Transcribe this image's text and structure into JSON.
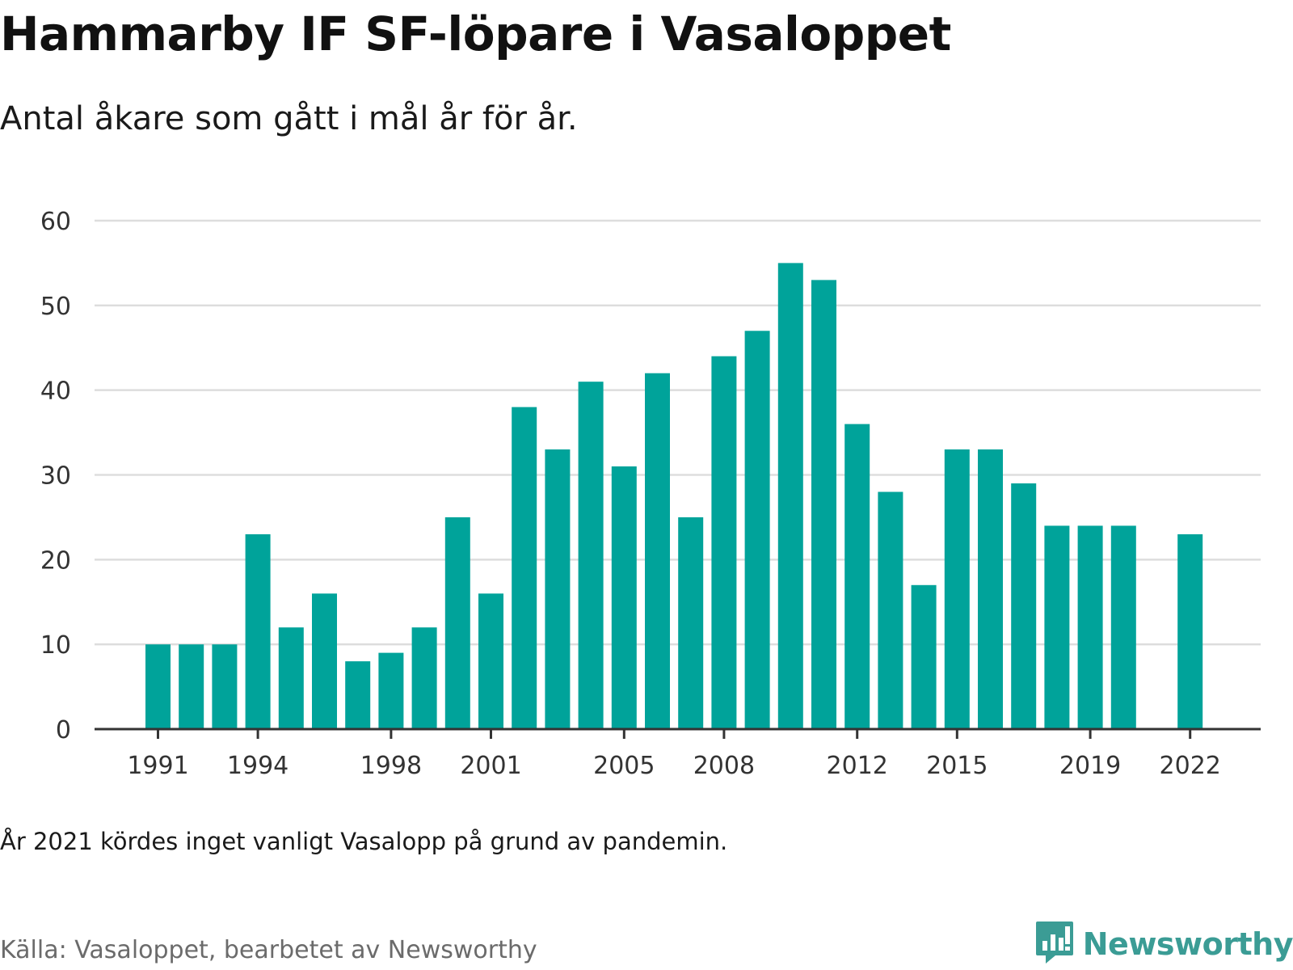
{
  "header": {
    "title": "Hammarby IF SF-löpare i Vasaloppet",
    "subtitle": "Antal åkare som gått i mål år för år."
  },
  "footer": {
    "note": "År 2021 kördes inget vanligt Vasalopp på grund av pandemin.",
    "source": "Källa: Vasaloppet, bearbetet av Newsworthy",
    "brand": "Newsworthy",
    "brand_icon": "newsworthy-logo-icon"
  },
  "colors": {
    "bar": "#00a39a",
    "grid": "#dddddd",
    "axis": "#333333",
    "brand": "#3b9c95"
  },
  "chart_data": {
    "type": "bar",
    "categories": [
      "1991",
      "1992",
      "1993",
      "1994",
      "1995",
      "1996",
      "1997",
      "1998",
      "1999",
      "2000",
      "2001",
      "2002",
      "2003",
      "2004",
      "2005",
      "2006",
      "2007",
      "2008",
      "2009",
      "2010",
      "2011",
      "2012",
      "2013",
      "2014",
      "2015",
      "2016",
      "2017",
      "2018",
      "2019",
      "2020",
      "2021",
      "2022"
    ],
    "values": [
      10,
      10,
      10,
      23,
      12,
      16,
      8,
      9,
      12,
      25,
      16,
      38,
      33,
      41,
      31,
      42,
      25,
      44,
      47,
      55,
      53,
      36,
      28,
      17,
      33,
      33,
      29,
      24,
      24,
      24,
      null,
      23
    ],
    "x_tick_labels": [
      "1991",
      "1994",
      "1998",
      "2001",
      "2005",
      "2008",
      "2012",
      "2015",
      "2019",
      "2022"
    ],
    "y_ticks": [
      0,
      10,
      20,
      30,
      40,
      50,
      60
    ],
    "ylim": [
      0,
      60
    ],
    "xlabel": "",
    "ylabel": "",
    "grid": true,
    "legend": "none"
  }
}
